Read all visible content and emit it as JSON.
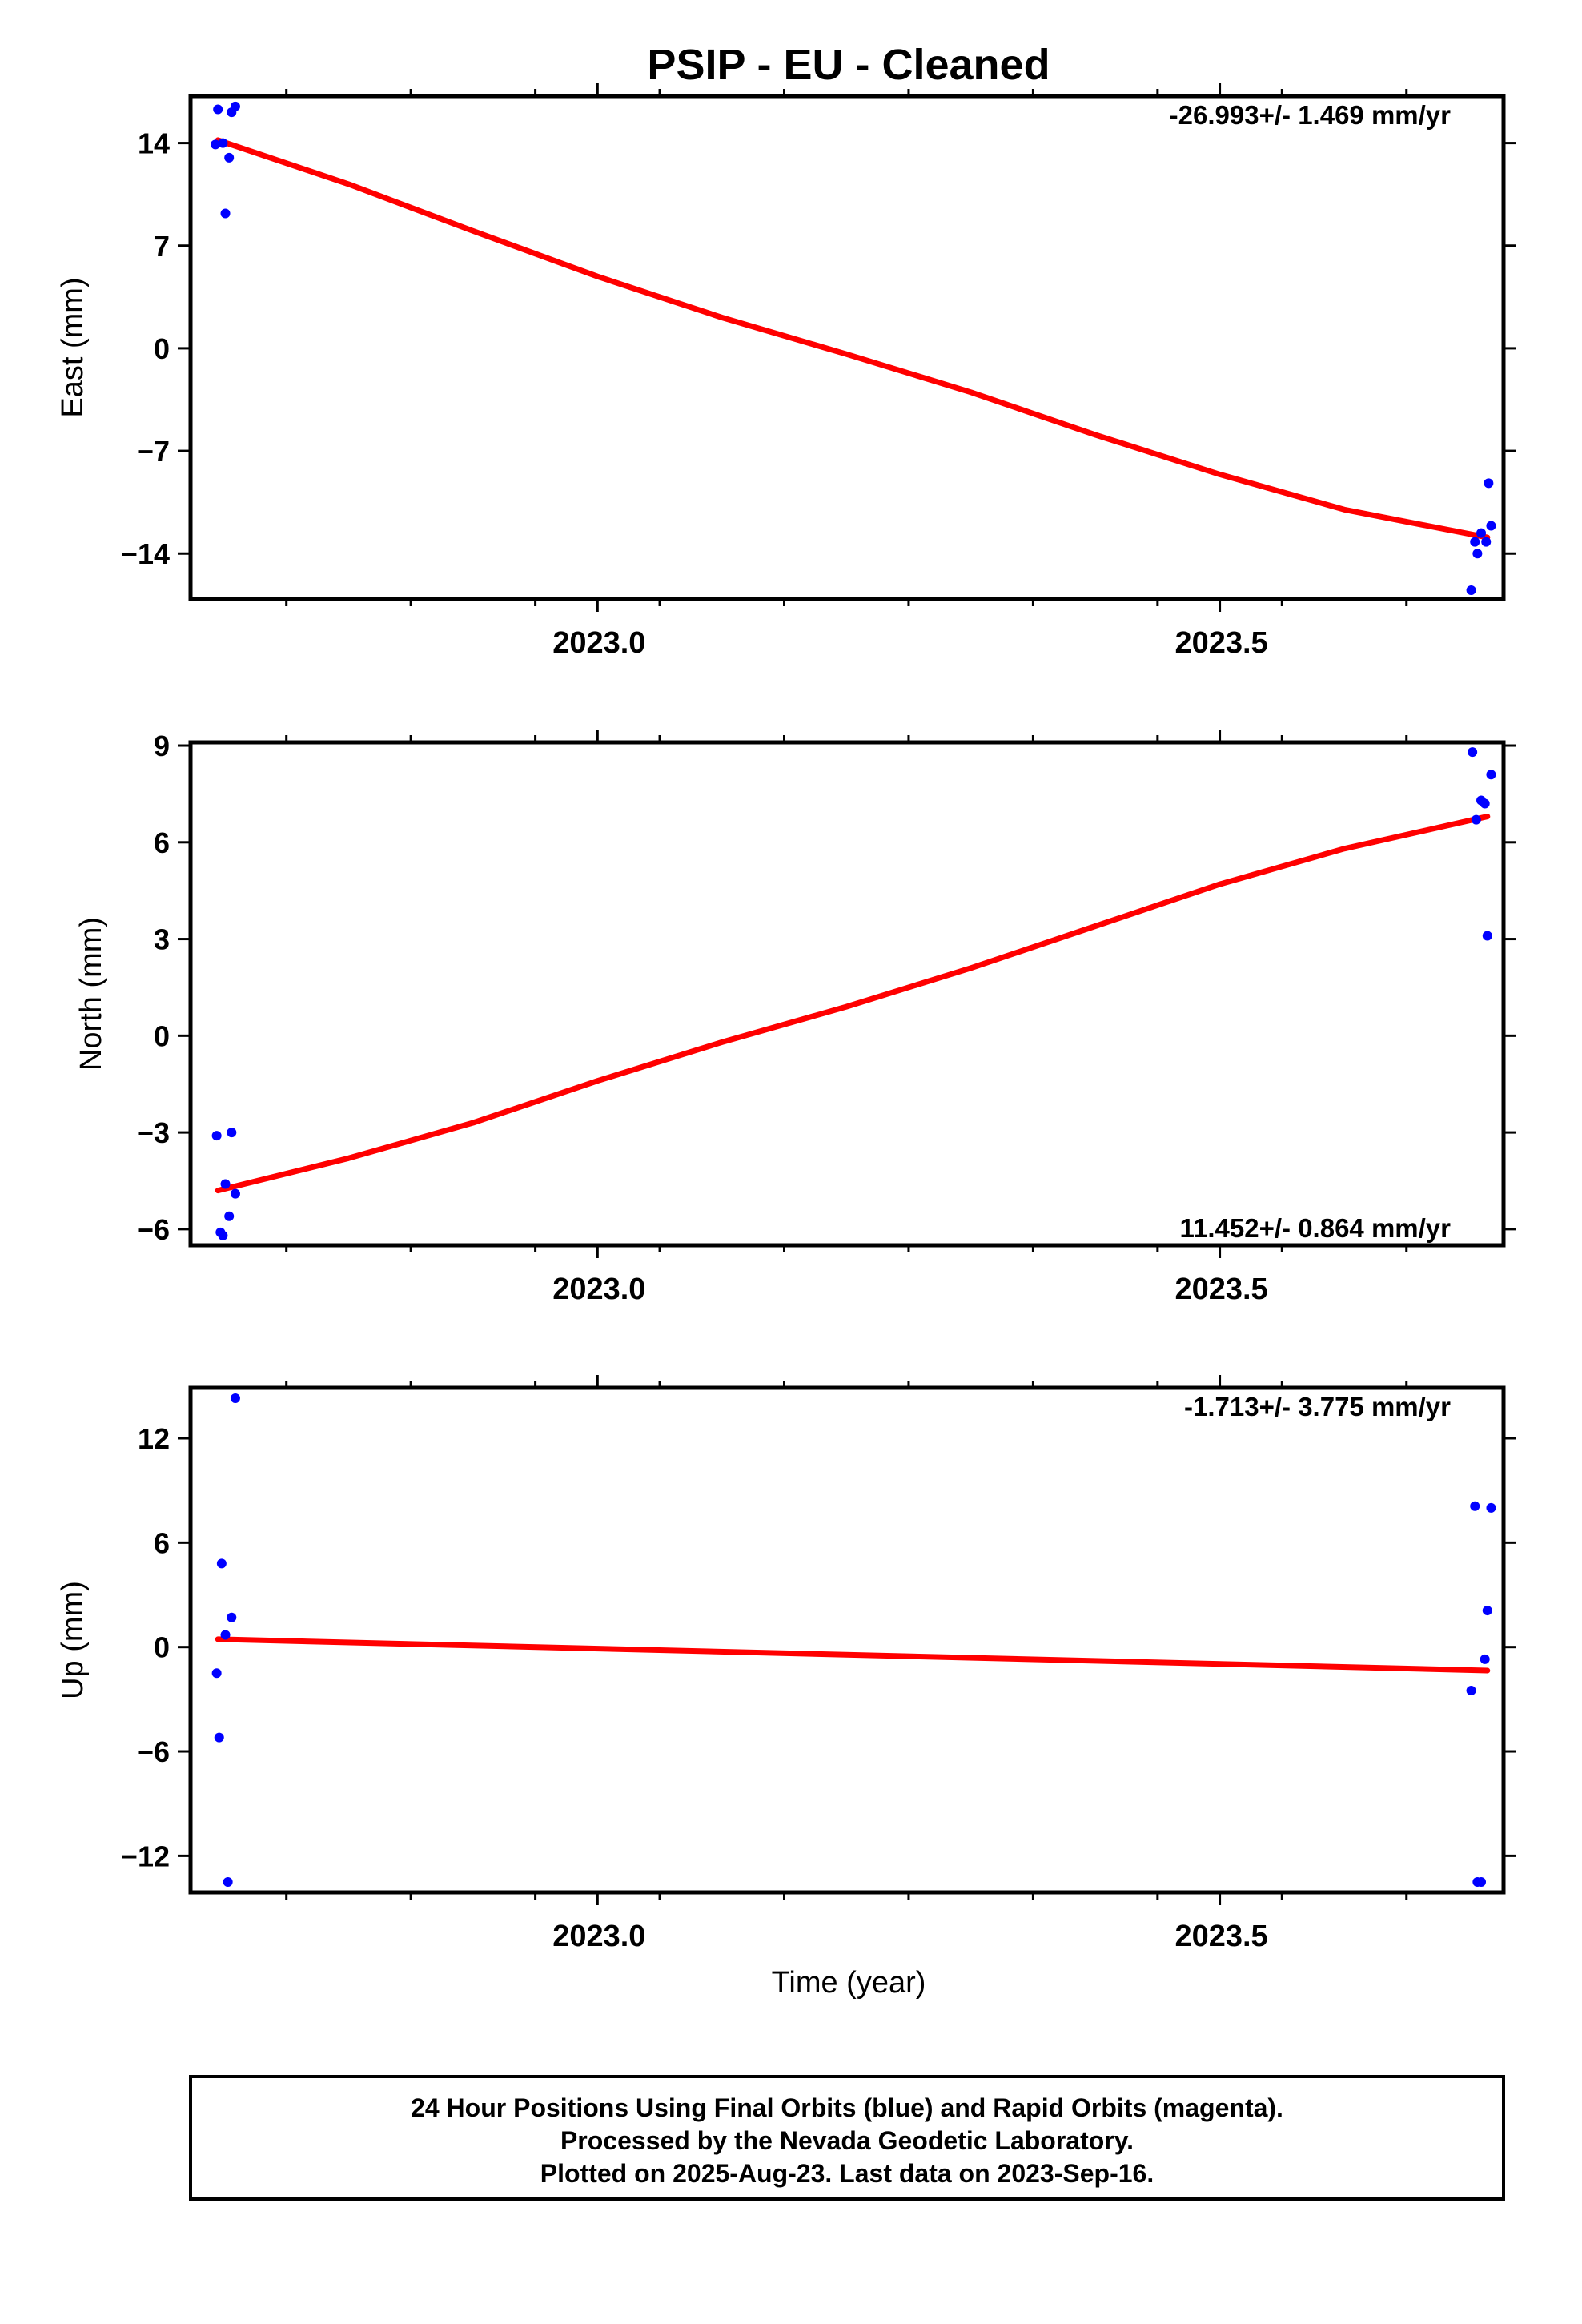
{
  "title": "PSIP  - EU - Cleaned",
  "xlabel": "Time (year)",
  "footer": {
    "line1": "24 Hour Positions Using Final Orbits (blue) and Rapid Orbits (magenta).",
    "line2": "Processed by the Nevada Geodetic Laboratory.",
    "line3": "Plotted on 2025-Aug-23. Last data on 2023-Sep-16."
  },
  "colors": {
    "points": "#0000ff",
    "fit": "#ff0000",
    "axes": "#000000"
  },
  "chart_data": [
    {
      "type": "scatter",
      "ylabel": "East (mm)",
      "rate_label": "-26.993+/- 1.469 mm/yr",
      "rate_position": "top-right",
      "xlim": [
        2022.673,
        2023.728
      ],
      "ylim": [
        -17.1,
        17.2
      ],
      "yticks": [
        14,
        7,
        0,
        -7,
        -14
      ],
      "ytick_labels": [
        "14",
        "7",
        "0",
        "−7",
        "−14"
      ],
      "xticks": [
        2023.0,
        2023.5
      ],
      "xtick_labels": [
        "2023.0",
        "2023.5"
      ],
      "grid": false,
      "points": [
        {
          "x": 2022.695,
          "y": 16.3
        },
        {
          "x": 2022.699,
          "y": 14.0
        },
        {
          "x": 2022.701,
          "y": 9.2
        },
        {
          "x": 2022.704,
          "y": 13.0
        },
        {
          "x": 2022.706,
          "y": 16.1
        },
        {
          "x": 2022.709,
          "y": 16.5
        },
        {
          "x": 2022.693,
          "y": 13.9
        },
        {
          "x": 2023.705,
          "y": -13.2
        },
        {
          "x": 2023.707,
          "y": -14.0
        },
        {
          "x": 2023.71,
          "y": -12.6
        },
        {
          "x": 2023.714,
          "y": -13.2
        },
        {
          "x": 2023.716,
          "y": -9.2
        },
        {
          "x": 2023.718,
          "y": -12.1
        },
        {
          "x": 2023.702,
          "y": -16.5
        }
      ],
      "fit": [
        {
          "x": 2022.695,
          "y": 14.2
        },
        {
          "x": 2022.8,
          "y": 11.2
        },
        {
          "x": 2022.9,
          "y": 8.0
        },
        {
          "x": 2023.0,
          "y": 4.9
        },
        {
          "x": 2023.1,
          "y": 2.1
        },
        {
          "x": 2023.2,
          "y": -0.4
        },
        {
          "x": 2023.3,
          "y": -3.0
        },
        {
          "x": 2023.4,
          "y": -5.9
        },
        {
          "x": 2023.5,
          "y": -8.6
        },
        {
          "x": 2023.6,
          "y": -11.0
        },
        {
          "x": 2023.715,
          "y": -12.9
        }
      ]
    },
    {
      "type": "scatter",
      "ylabel": "North (mm)",
      "rate_label": "11.452+/- 0.864 mm/yr",
      "rate_position": "bottom-right",
      "xlim": [
        2022.673,
        2023.728
      ],
      "ylim": [
        -6.5,
        9.1
      ],
      "yticks": [
        9,
        6,
        3,
        0,
        -3,
        -6
      ],
      "ytick_labels": [
        "9",
        "6",
        "3",
        "0",
        "−3",
        "−6"
      ],
      "xticks": [
        2023.0,
        2023.5
      ],
      "xtick_labels": [
        "2023.0",
        "2023.5"
      ],
      "grid": false,
      "points": [
        {
          "x": 2022.694,
          "y": -3.1
        },
        {
          "x": 2022.697,
          "y": -6.1
        },
        {
          "x": 2022.699,
          "y": -6.2
        },
        {
          "x": 2022.701,
          "y": -4.6
        },
        {
          "x": 2022.704,
          "y": -5.6
        },
        {
          "x": 2022.706,
          "y": -3.0
        },
        {
          "x": 2022.709,
          "y": -4.9
        },
        {
          "x": 2023.703,
          "y": 8.8
        },
        {
          "x": 2023.706,
          "y": 6.7
        },
        {
          "x": 2023.71,
          "y": 7.3
        },
        {
          "x": 2023.713,
          "y": 7.2
        },
        {
          "x": 2023.715,
          "y": 3.1
        },
        {
          "x": 2023.718,
          "y": 8.1
        }
      ],
      "fit": [
        {
          "x": 2022.695,
          "y": -4.8
        },
        {
          "x": 2022.8,
          "y": -3.8
        },
        {
          "x": 2022.9,
          "y": -2.7
        },
        {
          "x": 2023.0,
          "y": -1.4
        },
        {
          "x": 2023.1,
          "y": -0.2
        },
        {
          "x": 2023.2,
          "y": 0.9
        },
        {
          "x": 2023.3,
          "y": 2.1
        },
        {
          "x": 2023.4,
          "y": 3.4
        },
        {
          "x": 2023.5,
          "y": 4.7
        },
        {
          "x": 2023.6,
          "y": 5.8
        },
        {
          "x": 2023.715,
          "y": 6.8
        }
      ]
    },
    {
      "type": "scatter",
      "ylabel": "Up (mm)",
      "rate_label": "-1.713+/- 3.775 mm/yr",
      "rate_position": "top-right",
      "xlim": [
        2022.673,
        2023.728
      ],
      "ylim": [
        -14.1,
        14.9
      ],
      "yticks": [
        12,
        6,
        0,
        -6,
        -12
      ],
      "ytick_labels": [
        "12",
        "6",
        "0",
        "−6",
        "−12"
      ],
      "xticks": [
        2023.0,
        2023.5
      ],
      "xtick_labels": [
        "2023.0",
        "2023.5"
      ],
      "grid": false,
      "points": [
        {
          "x": 2022.694,
          "y": -1.5
        },
        {
          "x": 2022.696,
          "y": -5.2
        },
        {
          "x": 2022.698,
          "y": 4.8
        },
        {
          "x": 2022.701,
          "y": 0.7
        },
        {
          "x": 2022.703,
          "y": -13.5
        },
        {
          "x": 2022.706,
          "y": 1.7
        },
        {
          "x": 2022.709,
          "y": 14.3
        },
        {
          "x": 2023.702,
          "y": -2.5
        },
        {
          "x": 2023.705,
          "y": 8.1
        },
        {
          "x": 2023.707,
          "y": -13.5
        },
        {
          "x": 2023.71,
          "y": -13.5
        },
        {
          "x": 2023.713,
          "y": -0.7
        },
        {
          "x": 2023.715,
          "y": 2.1
        },
        {
          "x": 2023.718,
          "y": 8.0
        }
      ],
      "fit": [
        {
          "x": 2022.695,
          "y": 0.45
        },
        {
          "x": 2023.715,
          "y": -1.35
        }
      ]
    }
  ]
}
